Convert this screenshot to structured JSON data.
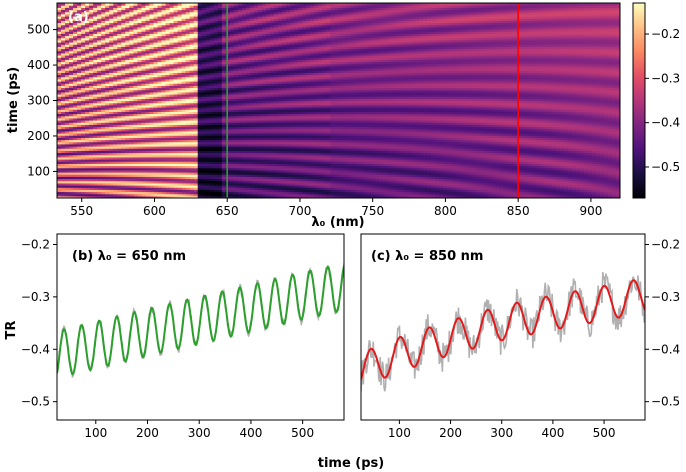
{
  "chart_data": [
    {
      "type": "heatmap",
      "panel_label": "(a)",
      "xlabel": "λ₀ (nm)",
      "ylabel": "time (ps)",
      "xlim": [
        533,
        920
      ],
      "ylim": [
        25,
        575
      ],
      "xticks": [
        550,
        600,
        650,
        700,
        750,
        800,
        850,
        900
      ],
      "yticks": [
        100,
        200,
        300,
        400,
        500
      ],
      "colorbar": {
        "vmin": -0.57,
        "vmax": -0.13,
        "ticks": [
          -0.2,
          -0.3,
          -0.4,
          -0.5
        ],
        "colormap": "magma"
      },
      "markers": [
        {
          "lambda": 650,
          "color": "#2ca02c"
        },
        {
          "lambda": 850,
          "color": "#ff0000"
        }
      ]
    },
    {
      "type": "line",
      "panel_label": "(b) λ₀ = 650 nm",
      "lambda": 650,
      "xlim": [
        25,
        580
      ],
      "ylim": [
        -0.535,
        -0.18
      ],
      "xticks": [
        100,
        200,
        300,
        400,
        500
      ],
      "yticks": [
        -0.2,
        -0.3,
        -0.4,
        -0.5
      ],
      "ylabel": "TR",
      "period_ps": 34,
      "series": [
        {
          "name": "fit",
          "color": "#2ca02c",
          "x": [
            25,
            100,
            200,
            300,
            400,
            500,
            575
          ],
          "center": [
            -0.41,
            -0.392,
            -0.368,
            -0.345,
            -0.322,
            -0.298,
            -0.282
          ],
          "amplitude": 0.045
        },
        {
          "name": "data",
          "color": "#b0b0b0",
          "noise": 0.008
        }
      ]
    },
    {
      "type": "line",
      "panel_label": "(c) λ₀ = 850 nm",
      "lambda": 850,
      "xlim": [
        25,
        580
      ],
      "ylim": [
        -0.535,
        -0.18
      ],
      "xticks": [
        100,
        200,
        300,
        400,
        500
      ],
      "yticks": [
        -0.2,
        -0.3,
        -0.4,
        -0.5
      ],
      "period_ps": 57,
      "series": [
        {
          "name": "fit",
          "color": "#e31a1c",
          "x": [
            25,
            100,
            200,
            300,
            400,
            500,
            575
          ],
          "center": [
            -0.44,
            -0.41,
            -0.378,
            -0.35,
            -0.33,
            -0.312,
            -0.298
          ],
          "amplitude": 0.033
        },
        {
          "name": "data",
          "color": "#b0b0b0",
          "noise": 0.03
        }
      ]
    }
  ],
  "shared_xlabel": "time (ps)"
}
